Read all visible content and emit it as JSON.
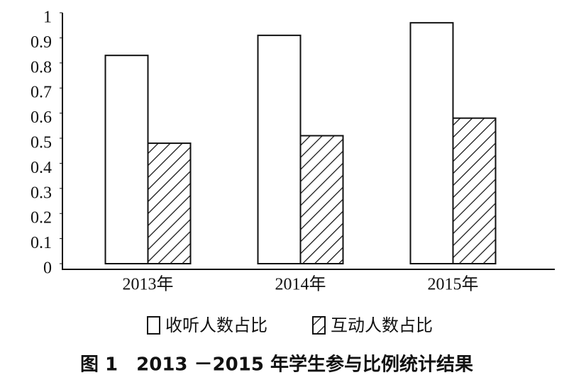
{
  "chart_data": {
    "type": "bar",
    "title": "图 1　2013 －2015 年学生参与比例统计结果",
    "categories": [
      "2013年",
      "2014年",
      "2015年"
    ],
    "series": [
      {
        "name": "收听人数占比",
        "color": "#ffffff",
        "pattern": "none",
        "values": [
          0.83,
          0.91,
          0.96
        ]
      },
      {
        "name": "互动人数占比",
        "color": "#ffffff",
        "pattern": "hatch",
        "values": [
          0.48,
          0.51,
          0.58
        ]
      }
    ],
    "ylim": [
      0,
      1
    ],
    "yticks": [
      0,
      0.1,
      0.2,
      0.3,
      0.4,
      0.5,
      0.6,
      0.7,
      0.8,
      0.9,
      1
    ],
    "grid": false,
    "legend": "bottom"
  }
}
